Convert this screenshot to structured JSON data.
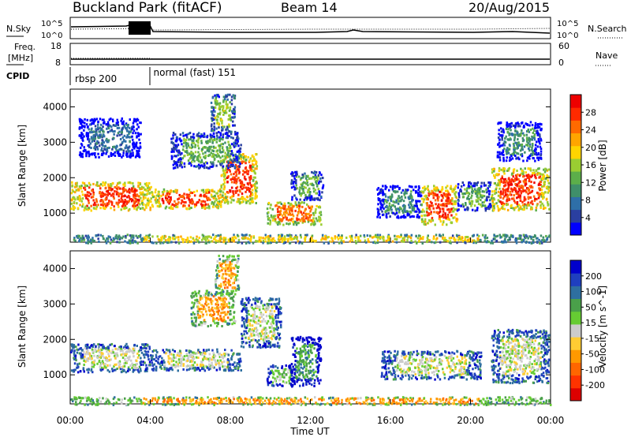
{
  "header": {
    "station": "Buckland Park (fitACF)",
    "beam": "Beam 14",
    "date": "20/Aug/2015"
  },
  "chart_data": {
    "type": "heatmap",
    "title": "Buckland Park (fitACF)",
    "x_axis": {
      "label": "Time UT",
      "range_hours": [
        0,
        24
      ],
      "ticks": [
        "00:00",
        "04:00",
        "08:00",
        "12:00",
        "16:00",
        "20:00",
        "00:00"
      ]
    },
    "summary_panels": {
      "noise": {
        "left_label": "N.Sky",
        "right_label": "N.Search",
        "left_ticks": [
          "10^5",
          "10^0"
        ],
        "right_ticks": [
          "10^5",
          "10^0"
        ]
      },
      "frequency": {
        "left_label_line1": "Freq.",
        "left_label_line2": "[MHz]",
        "right_label": "Nave",
        "left_ticks": [
          "18",
          "8"
        ],
        "right_ticks": [
          "60",
          "0"
        ]
      },
      "cpid": {
        "label": "CPID",
        "segments": [
          {
            "name": "rbsp 200",
            "start_hour": 0,
            "end_hour": 4
          },
          {
            "name": "normal (fast) 151",
            "start_hour": 4,
            "end_hour": 24
          }
        ]
      }
    },
    "y_axis": {
      "label": "Slant Range [km]",
      "range_km": [
        180,
        4500
      ],
      "ticks": [
        1000,
        2000,
        3000,
        4000
      ]
    },
    "power_panel": {
      "colorbar_label": "Power [dB]",
      "colorbar_ticks": [
        "4",
        "8",
        "12",
        "16",
        "20",
        "24",
        "28"
      ],
      "colors": [
        "#0000ff",
        "#2a3fa0",
        "#2e6fa8",
        "#3f8f6a",
        "#5cae4a",
        "#9acd32",
        "#ffd400",
        "#ffa500",
        "#ff6a00",
        "#ff2a00",
        "#ee0000"
      ]
    },
    "velocity_panel": {
      "colorbar_label": "Velocity [m s^-1]",
      "colorbar_ticks": [
        "200",
        "100",
        "50",
        "15",
        "-15",
        "-50",
        "-100",
        "-200"
      ],
      "colors": [
        "#0000cc",
        "#1f3fbf",
        "#2e6fa0",
        "#4aa04a",
        "#66cc33",
        "#cccccc",
        "#ffcc33",
        "#ff9900",
        "#ff6600",
        "#ff3300",
        "#dd0000"
      ]
    },
    "power_regions": [
      {
        "t0": 0.0,
        "t1": 4.0,
        "r0": 1100,
        "r1": 1900,
        "level": 9
      },
      {
        "t0": 4.0,
        "t1": 7.5,
        "r0": 1150,
        "r1": 1700,
        "level": 9
      },
      {
        "t0": 7.5,
        "t1": 9.3,
        "r0": 1300,
        "r1": 2700,
        "level": 9
      },
      {
        "t0": 5.0,
        "t1": 8.5,
        "r0": 2300,
        "r1": 3300,
        "level": 4
      },
      {
        "t0": 7.0,
        "t1": 8.2,
        "r0": 3300,
        "r1": 4400,
        "level": 5
      },
      {
        "t0": 0.4,
        "t1": 3.5,
        "r0": 2600,
        "r1": 3700,
        "level": 2
      },
      {
        "t0": 9.8,
        "t1": 12.5,
        "r0": 700,
        "r1": 1350,
        "level": 8
      },
      {
        "t0": 11.0,
        "t1": 12.6,
        "r0": 1400,
        "r1": 2200,
        "level": 4
      },
      {
        "t0": 15.3,
        "t1": 17.5,
        "r0": 900,
        "r1": 1800,
        "level": 3
      },
      {
        "t0": 17.5,
        "t1": 19.3,
        "r0": 700,
        "r1": 1800,
        "level": 9
      },
      {
        "t0": 19.3,
        "t1": 21.0,
        "r0": 1100,
        "r1": 1900,
        "level": 4
      },
      {
        "t0": 21.0,
        "t1": 23.9,
        "r0": 1100,
        "r1": 2300,
        "level": 9
      },
      {
        "t0": 21.3,
        "t1": 23.5,
        "r0": 2500,
        "r1": 3600,
        "level": 3
      },
      {
        "t0": 0.0,
        "t1": 24.0,
        "r0": 180,
        "r1": 420,
        "level": 6
      }
    ],
    "velocity_regions": [
      {
        "t0": 0.0,
        "t1": 4.0,
        "r0": 1100,
        "r1": 1900,
        "level": 5
      },
      {
        "t0": 4.0,
        "t1": 8.5,
        "r0": 1150,
        "r1": 1750,
        "level": 5
      },
      {
        "t0": 8.5,
        "t1": 10.5,
        "r0": 1800,
        "r1": 3200,
        "level": 5
      },
      {
        "t0": 6.0,
        "t1": 8.2,
        "r0": 2400,
        "r1": 3400,
        "level": 7
      },
      {
        "t0": 7.2,
        "t1": 8.4,
        "r0": 3300,
        "r1": 4400,
        "level": 7
      },
      {
        "t0": 9.8,
        "t1": 11.2,
        "r0": 700,
        "r1": 1300,
        "level": 4
      },
      {
        "t0": 11.0,
        "t1": 12.5,
        "r0": 700,
        "r1": 2100,
        "level": 3
      },
      {
        "t0": 15.5,
        "t1": 20.5,
        "r0": 900,
        "r1": 1700,
        "level": 5
      },
      {
        "t0": 21.0,
        "t1": 23.9,
        "r0": 800,
        "r1": 2300,
        "level": 5
      },
      {
        "t0": 0.0,
        "t1": 24.0,
        "r0": 180,
        "r1": 400,
        "level": 7
      }
    ]
  }
}
